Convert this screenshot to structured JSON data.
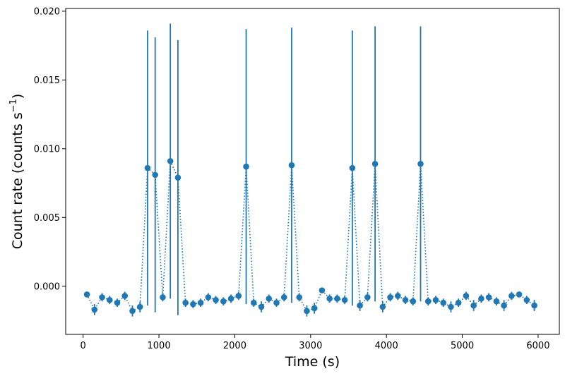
{
  "chart_data": {
    "type": "scatter",
    "xlabel": "Time (s)",
    "ylabel_main": "Count rate (counts s",
    "ylabel_sup": "−1",
    "ylabel_close": ")",
    "xlim": [
      -230,
      6280
    ],
    "ylim": [
      -0.0035,
      0.0202
    ],
    "xticks": [
      0,
      1000,
      2000,
      3000,
      4000,
      5000,
      6000
    ],
    "yticks": [
      0.0,
      0.005,
      0.01,
      0.015,
      0.02
    ],
    "ytick_labels": [
      "0.000",
      "0.005",
      "0.010",
      "0.015",
      "0.020"
    ],
    "color": "#1f77b4",
    "line_style": "dotted",
    "series": [
      {
        "x": [
          50,
          150,
          250,
          350,
          450,
          550,
          650,
          750,
          850,
          950,
          1050,
          1150,
          1250,
          1350,
          1450,
          1550,
          1650,
          1750,
          1850,
          1950,
          2050,
          2150,
          2250,
          2350,
          2450,
          2550,
          2650,
          2750,
          2850,
          2950,
          3050,
          3150,
          3250,
          3350,
          3450,
          3550,
          3650,
          3750,
          3850,
          3950,
          4050,
          4150,
          4250,
          4350,
          4450,
          4550,
          4650,
          4750,
          4850,
          4950,
          5050,
          5150,
          5250,
          5350,
          5450,
          5550,
          5650,
          5750,
          5850,
          5950
        ],
        "y": [
          -0.0006,
          -0.0017,
          -0.0008,
          -0.001,
          -0.0012,
          -0.0007,
          -0.0018,
          -0.0015,
          0.0086,
          0.0081,
          -0.0008,
          0.0091,
          0.0079,
          -0.0012,
          -0.0013,
          -0.0012,
          -0.0008,
          -0.001,
          -0.0011,
          -0.0009,
          -0.0007,
          0.0087,
          -0.0012,
          -0.0015,
          -0.0009,
          -0.0012,
          -0.0008,
          0.0088,
          -0.0008,
          -0.0018,
          -0.0016,
          -0.0003,
          -0.0009,
          -0.0009,
          -0.001,
          0.0086,
          -0.0014,
          -0.0008,
          0.0089,
          -0.0015,
          -0.0008,
          -0.0007,
          -0.001,
          -0.0011,
          0.0089,
          -0.0011,
          -0.001,
          -0.0012,
          -0.0015,
          -0.0012,
          -0.0007,
          -0.0014,
          -0.0009,
          -0.0008,
          -0.0011,
          -0.0014,
          -0.0007,
          -0.0006,
          -0.001,
          -0.0014
        ],
        "yerr": [
          0.0002,
          0.0004,
          0.0003,
          0.0003,
          0.0003,
          0.0003,
          0.0004,
          0.0004,
          0.01,
          0.01,
          0.0003,
          0.01,
          0.01,
          0.0003,
          0.0003,
          0.0003,
          0.0003,
          0.0003,
          0.0003,
          0.0003,
          0.0003,
          0.01,
          0.0003,
          0.0004,
          0.0003,
          0.0003,
          0.0003,
          0.01,
          0.0003,
          0.0004,
          0.0004,
          0.0002,
          0.0003,
          0.0003,
          0.0003,
          0.01,
          0.0004,
          0.0003,
          0.01,
          0.0004,
          0.0003,
          0.0003,
          0.0003,
          0.0003,
          0.01,
          0.0003,
          0.0003,
          0.0003,
          0.0004,
          0.0003,
          0.0003,
          0.0004,
          0.0003,
          0.0003,
          0.0003,
          0.0004,
          0.0003,
          0.0002,
          0.0003,
          0.0004
        ]
      }
    ]
  }
}
